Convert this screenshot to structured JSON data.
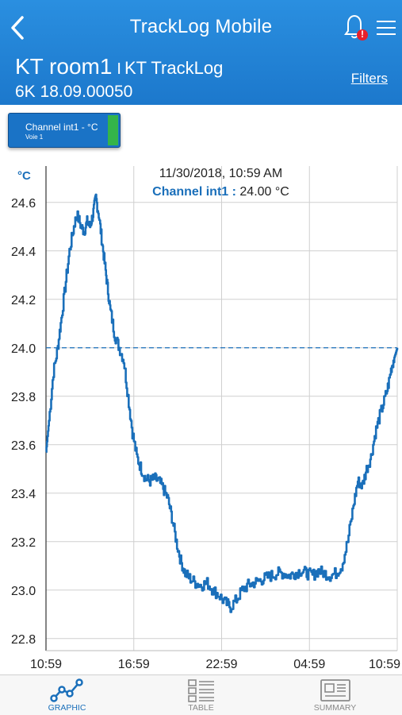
{
  "header": {
    "title": "TrackLog Mobile",
    "device_name": "KT room1",
    "separator": "I",
    "device_sub": "KT TrackLog",
    "serial": "6K 18.09.00050",
    "filters_label": "Filters",
    "notification_badge": "!"
  },
  "channel_chip": {
    "label": "Channel int1 - °C",
    "sub": "Voie 1",
    "color": "#34b44a"
  },
  "readout": {
    "datetime": "11/30/2018, 10:59 AM",
    "channel_label": "Channel int1 :",
    "value": "24.00 °C"
  },
  "tabs": [
    {
      "label": "GRAPHIC",
      "icon": "line-graph-icon",
      "active": true
    },
    {
      "label": "TABLE",
      "icon": "table-icon",
      "active": false
    },
    {
      "label": "SUMMARY",
      "icon": "summary-icon",
      "active": false
    }
  ],
  "chart_data": {
    "type": "line",
    "ylabel": "°C",
    "ylim": [
      22.75,
      24.75
    ],
    "yticks": [
      22.8,
      23.0,
      23.2,
      23.4,
      23.6,
      23.8,
      24.0,
      24.2,
      24.4,
      24.6
    ],
    "ytick_labels": [
      "22.8",
      "23.0",
      "23.2",
      "23.4",
      "23.6",
      "23.8",
      "24.0",
      "24.2",
      "24.4",
      "24.6"
    ],
    "xlim": [
      0,
      24
    ],
    "xticks": [
      0,
      6,
      12,
      18,
      24
    ],
    "xtick_labels": [
      "10:59",
      "16:59",
      "22:59",
      "04:59",
      "10:59"
    ],
    "reference_line": 24.0,
    "grid": true,
    "line_color": "#1a6fba",
    "series": [
      {
        "x": [
          0,
          0.2,
          0.5,
          0.8,
          1.0,
          1.3,
          1.6,
          1.9,
          2.1,
          2.4,
          2.6,
          2.8,
          3.0,
          3.2,
          3.4,
          3.6,
          3.8,
          4.0,
          4.2,
          4.4,
          4.7,
          5.0,
          5.3,
          5.6,
          5.9,
          6.2,
          6.5,
          6.8,
          7.1,
          7.4,
          7.7,
          8.0,
          8.3,
          8.6,
          8.9,
          9.2,
          9.5,
          9.8,
          10.2,
          10.6,
          11.0,
          11.4,
          11.8,
          12.2,
          12.6,
          13.0,
          13.4,
          13.8,
          14.2,
          14.6,
          15.0,
          15.4,
          15.8,
          16.2,
          16.6,
          17.0,
          17.4,
          17.8,
          18.2,
          18.6,
          19.0,
          19.4,
          19.8,
          20.2,
          20.6,
          21.0,
          21.3,
          21.6,
          21.9,
          22.2,
          22.5,
          22.8,
          23.1,
          23.4,
          23.6,
          23.8,
          24.0
        ],
        "y": [
          23.57,
          23.7,
          23.9,
          24.0,
          24.1,
          24.25,
          24.4,
          24.5,
          24.55,
          24.5,
          24.48,
          24.52,
          24.5,
          24.55,
          24.62,
          24.55,
          24.45,
          24.35,
          24.25,
          24.15,
          24.05,
          24.0,
          23.95,
          23.8,
          23.65,
          23.55,
          23.5,
          23.46,
          23.45,
          23.46,
          23.45,
          23.42,
          23.38,
          23.3,
          23.2,
          23.12,
          23.07,
          23.05,
          23.03,
          23.02,
          23.03,
          23.0,
          22.98,
          22.95,
          22.93,
          22.96,
          23.0,
          23.02,
          23.03,
          23.04,
          23.05,
          23.06,
          23.07,
          23.07,
          23.06,
          23.07,
          23.08,
          23.07,
          23.06,
          23.08,
          23.07,
          23.06,
          23.07,
          23.1,
          23.2,
          23.35,
          23.45,
          23.43,
          23.5,
          23.55,
          23.65,
          23.72,
          23.78,
          23.85,
          23.92,
          23.96,
          24.0
        ]
      }
    ]
  }
}
